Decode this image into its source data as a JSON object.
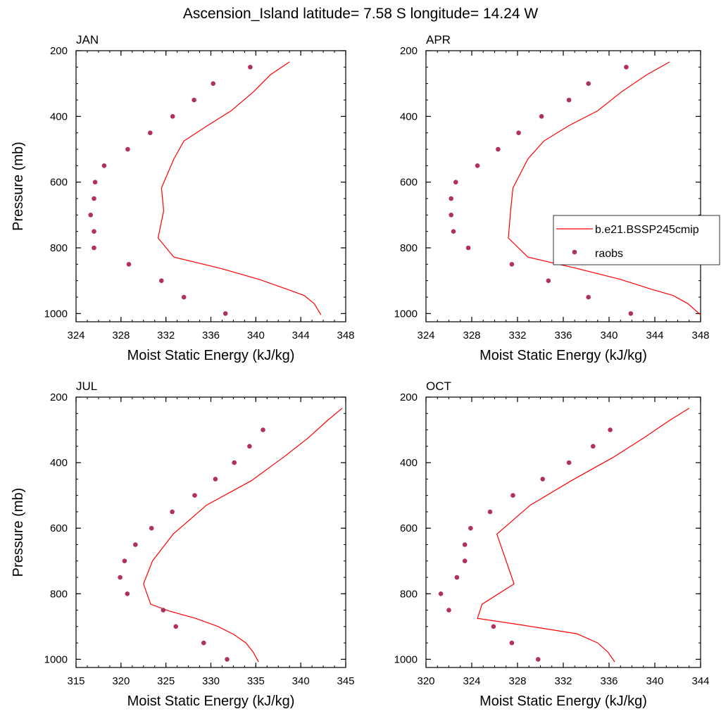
{
  "title": "Ascension_Island  latitude= 7.58 S longitude= 14.24 W",
  "colors": {
    "model": "#ff0000",
    "obs": "#b03060",
    "axis": "#000000",
    "background": "#ffffff"
  },
  "legend": {
    "panel": "APR",
    "model_label": "b.e21.BSSP245cmip",
    "obs_label": "raobs"
  },
  "chart_data": [
    {
      "type": "line",
      "panel": "JAN",
      "title": "JAN",
      "xlabel": "Moist Static Energy (kJ/kg)",
      "ylabel": "Pressure (mb)",
      "xlim": [
        324,
        348
      ],
      "ylim": [
        200,
        1025
      ],
      "y_reversed": true,
      "xticks": [
        324,
        328,
        332,
        336,
        340,
        344,
        348
      ],
      "yticks": [
        200,
        400,
        600,
        800,
        1000
      ],
      "show_ylabel": true,
      "series": [
        {
          "name": "b.e21.BSSP245cmip",
          "style": "line",
          "points": [
            [
              343.0,
              234
            ],
            [
              341.3,
              273
            ],
            [
              339.8,
              325
            ],
            [
              337.8,
              383
            ],
            [
              335.7,
              428
            ],
            [
              333.6,
              475
            ],
            [
              332.7,
              530
            ],
            [
              331.6,
              618
            ],
            [
              331.8,
              687
            ],
            [
              331.3,
              770
            ],
            [
              332.7,
              828
            ],
            [
              336.8,
              862
            ],
            [
              340.3,
              896
            ],
            [
              342.7,
              925
            ],
            [
              344.3,
              945
            ],
            [
              345.2,
              970
            ],
            [
              345.8,
              1004
            ]
          ]
        },
        {
          "name": "raobs",
          "style": "markers",
          "points": [
            [
              339.5,
              250
            ],
            [
              336.2,
              300
            ],
            [
              334.5,
              350
            ],
            [
              332.6,
              400
            ],
            [
              330.6,
              450
            ],
            [
              328.6,
              500
            ],
            [
              326.5,
              550
            ],
            [
              325.7,
              600
            ],
            [
              325.6,
              650
            ],
            [
              325.3,
              700
            ],
            [
              325.6,
              750
            ],
            [
              325.6,
              800
            ],
            [
              328.7,
              850
            ],
            [
              331.6,
              900
            ],
            [
              333.6,
              950
            ],
            [
              337.3,
              1000
            ]
          ]
        }
      ]
    },
    {
      "type": "line",
      "panel": "APR",
      "title": "APR",
      "xlabel": "Moist Static Energy (kJ/kg)",
      "ylabel": "Pressure (mb)",
      "xlim": [
        324,
        348
      ],
      "ylim": [
        200,
        1025
      ],
      "y_reversed": true,
      "xticks": [
        324,
        328,
        332,
        336,
        340,
        344,
        348
      ],
      "yticks": [
        200,
        400,
        600,
        800,
        1000
      ],
      "show_ylabel": false,
      "series": [
        {
          "name": "b.e21.BSSP245cmip",
          "style": "line",
          "points": [
            [
              345.3,
              234
            ],
            [
              343.3,
              273
            ],
            [
              341.1,
              325
            ],
            [
              339.0,
              383
            ],
            [
              336.5,
              428
            ],
            [
              334.3,
              475
            ],
            [
              332.9,
              530
            ],
            [
              331.6,
              618
            ],
            [
              331.4,
              687
            ],
            [
              331.2,
              770
            ],
            [
              332.9,
              828
            ],
            [
              337.1,
              862
            ],
            [
              341.0,
              896
            ],
            [
              343.6,
              925
            ],
            [
              345.6,
              945
            ],
            [
              346.9,
              970
            ],
            [
              348.0,
              1004
            ]
          ]
        },
        {
          "name": "raobs",
          "style": "markers",
          "points": [
            [
              341.5,
              250
            ],
            [
              338.2,
              300
            ],
            [
              336.5,
              350
            ],
            [
              334.1,
              400
            ],
            [
              332.1,
              450
            ],
            [
              330.3,
              500
            ],
            [
              328.5,
              550
            ],
            [
              326.6,
              600
            ],
            [
              326.2,
              650
            ],
            [
              326.2,
              700
            ],
            [
              326.4,
              750
            ],
            [
              327.7,
              800
            ],
            [
              331.5,
              850
            ],
            [
              334.7,
              900
            ],
            [
              338.2,
              950
            ],
            [
              341.9,
              1000
            ]
          ]
        }
      ]
    },
    {
      "type": "line",
      "panel": "JUL",
      "title": "JUL",
      "xlabel": "Moist Static Energy (kJ/kg)",
      "ylabel": "Pressure (mb)",
      "xlim": [
        315,
        345
      ],
      "ylim": [
        200,
        1025
      ],
      "y_reversed": true,
      "xticks": [
        315,
        320,
        325,
        330,
        335,
        340,
        345
      ],
      "yticks": [
        200,
        400,
        600,
        800,
        1000
      ],
      "show_ylabel": true,
      "series": [
        {
          "name": "b.e21.BSSP245cmip",
          "style": "line",
          "points": [
            [
              344.6,
              234
            ],
            [
              342.9,
              273
            ],
            [
              340.8,
              325
            ],
            [
              338.1,
              383
            ],
            [
              334.5,
              455
            ],
            [
              329.5,
              530
            ],
            [
              325.8,
              618
            ],
            [
              323.5,
              700
            ],
            [
              322.5,
              770
            ],
            [
              323.3,
              832
            ],
            [
              325.4,
              853
            ],
            [
              328.3,
              875
            ],
            [
              330.8,
              900
            ],
            [
              332.6,
              925
            ],
            [
              333.9,
              950
            ],
            [
              334.7,
              978
            ],
            [
              335.3,
              1008
            ]
          ]
        },
        {
          "name": "raobs",
          "style": "markers",
          "points": [
            [
              335.8,
              300
            ],
            [
              334.3,
              350
            ],
            [
              332.6,
              400
            ],
            [
              330.5,
              450
            ],
            [
              328.2,
              500
            ],
            [
              325.7,
              550
            ],
            [
              323.4,
              600
            ],
            [
              321.6,
              650
            ],
            [
              320.4,
              700
            ],
            [
              319.9,
              750
            ],
            [
              320.7,
              800
            ],
            [
              324.7,
              850
            ],
            [
              326.1,
              900
            ],
            [
              329.2,
              950
            ],
            [
              331.8,
              1000
            ]
          ]
        }
      ]
    },
    {
      "type": "line",
      "panel": "OCT",
      "title": "OCT",
      "xlabel": "Moist Static Energy (kJ/kg)",
      "ylabel": "Pressure (mb)",
      "xlim": [
        320,
        344
      ],
      "ylim": [
        200,
        1025
      ],
      "y_reversed": true,
      "xticks": [
        320,
        324,
        328,
        332,
        336,
        340,
        344
      ],
      "yticks": [
        200,
        400,
        600,
        800,
        1000
      ],
      "show_ylabel": false,
      "series": [
        {
          "name": "b.e21.BSSP245cmip",
          "style": "line",
          "points": [
            [
              343.0,
              234
            ],
            [
              341.2,
              273
            ],
            [
              339.0,
              325
            ],
            [
              336.4,
              383
            ],
            [
              332.7,
              455
            ],
            [
              329.1,
              530
            ],
            [
              326.2,
              618
            ],
            [
              327.7,
              770
            ],
            [
              324.9,
              832
            ],
            [
              324.5,
              875
            ],
            [
              328.3,
              895
            ],
            [
              333.2,
              922
            ],
            [
              335.0,
              950
            ],
            [
              335.9,
              978
            ],
            [
              336.5,
              1008
            ]
          ]
        },
        {
          "name": "raobs",
          "style": "markers",
          "points": [
            [
              336.1,
              300
            ],
            [
              334.6,
              350
            ],
            [
              332.5,
              400
            ],
            [
              330.2,
              450
            ],
            [
              327.6,
              500
            ],
            [
              325.6,
              550
            ],
            [
              323.9,
              600
            ],
            [
              323.4,
              650
            ],
            [
              323.4,
              700
            ],
            [
              322.7,
              750
            ],
            [
              321.3,
              800
            ],
            [
              322.0,
              850
            ],
            [
              325.9,
              900
            ],
            [
              327.5,
              950
            ],
            [
              329.8,
              1000
            ]
          ]
        }
      ]
    }
  ]
}
